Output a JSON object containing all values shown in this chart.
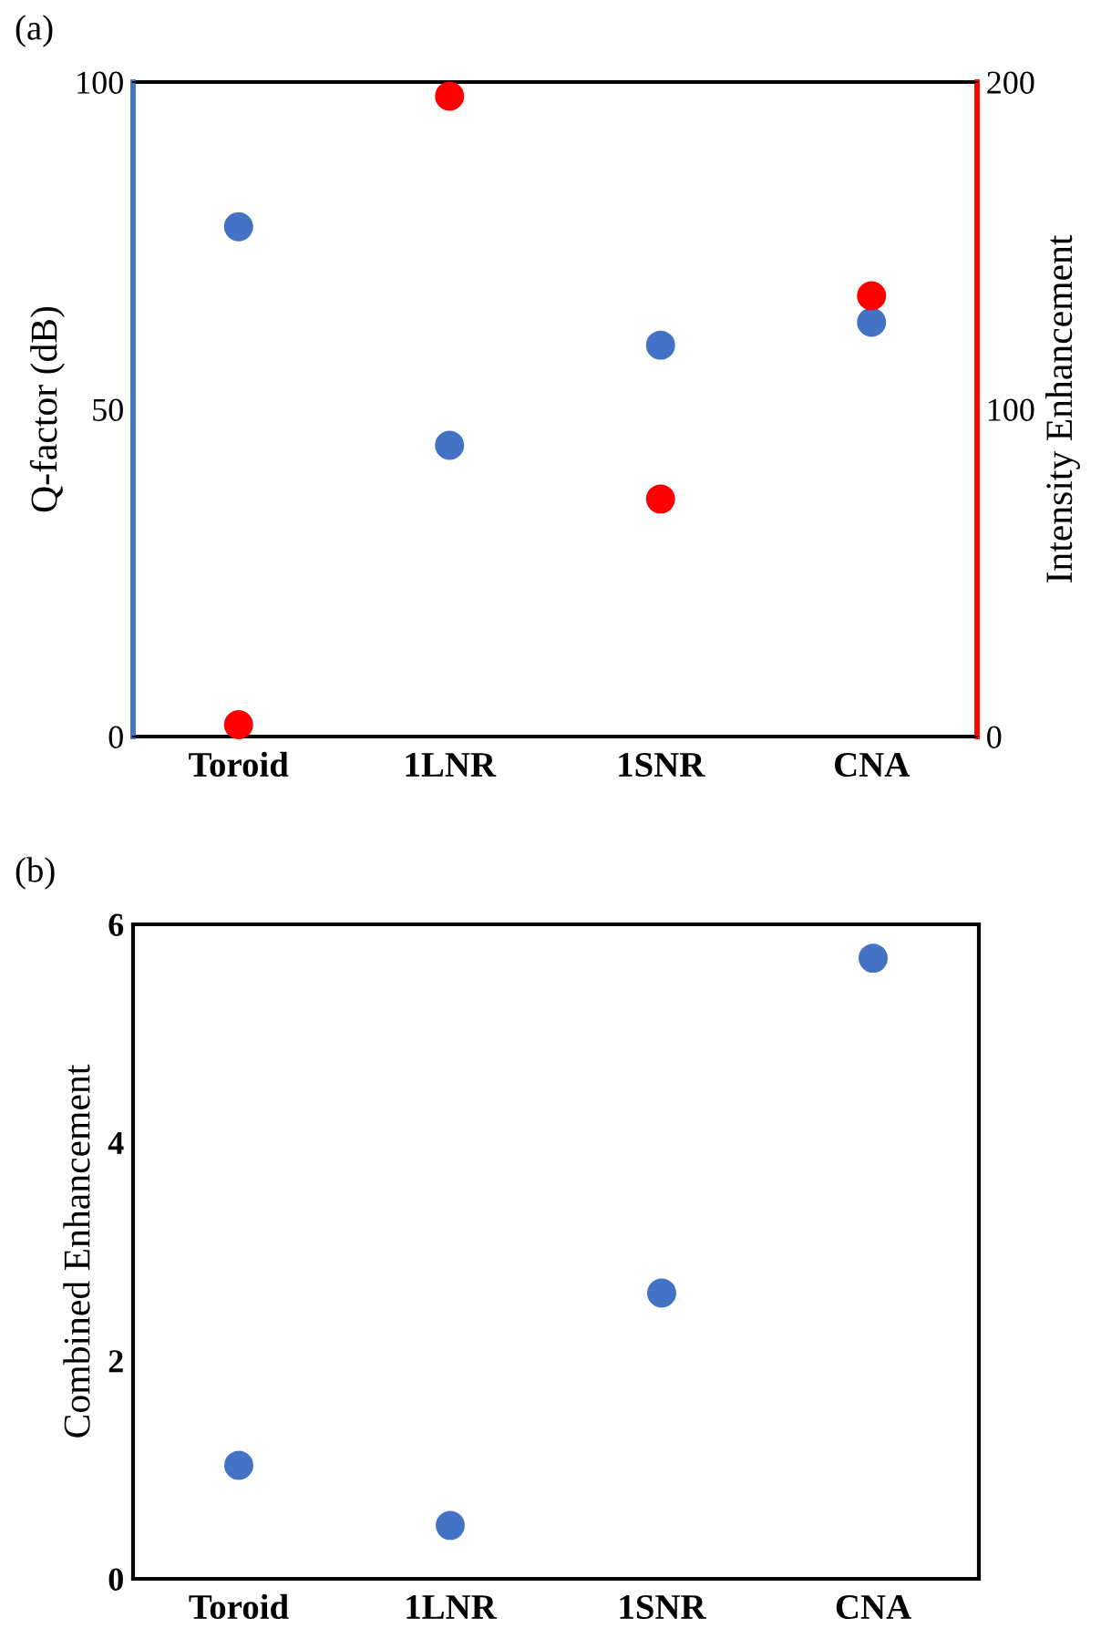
{
  "chart_data": [
    {
      "type": "scatter",
      "annotations": [
        "(a)"
      ],
      "categories": [
        "Toroid",
        "1LNR",
        "1SNR",
        "CNA"
      ],
      "ylabel": "Q-factor (dB)",
      "y2label": "Intensity Enhancement",
      "ylim": [
        0,
        100
      ],
      "yticks": [
        0,
        50,
        100
      ],
      "y2lim": [
        0,
        200
      ],
      "y2ticks": [
        0,
        100,
        200
      ],
      "marker": "circle",
      "series": [
        {
          "color": "#4472c4",
          "values": [
            77.9,
            44.5,
            59.8,
            63.3
          ]
        },
        {
          "color": "#ff0000",
          "axis": "y2",
          "values": [
            3.6,
            195.7,
            72.6,
            134.7
          ]
        }
      ]
    },
    {
      "type": "scatter",
      "annotations": [
        "(b)"
      ],
      "categories": [
        "Toroid",
        "1LNR",
        "1SNR",
        "CNA"
      ],
      "ylabel": "Combined Enhancement",
      "ylim": [
        0,
        6
      ],
      "yticks": [
        0,
        2,
        4,
        6
      ],
      "marker": "circle",
      "series": [
        {
          "color": "#4472c4",
          "values": [
            1.04,
            0.49,
            2.62,
            5.69
          ]
        }
      ]
    }
  ]
}
